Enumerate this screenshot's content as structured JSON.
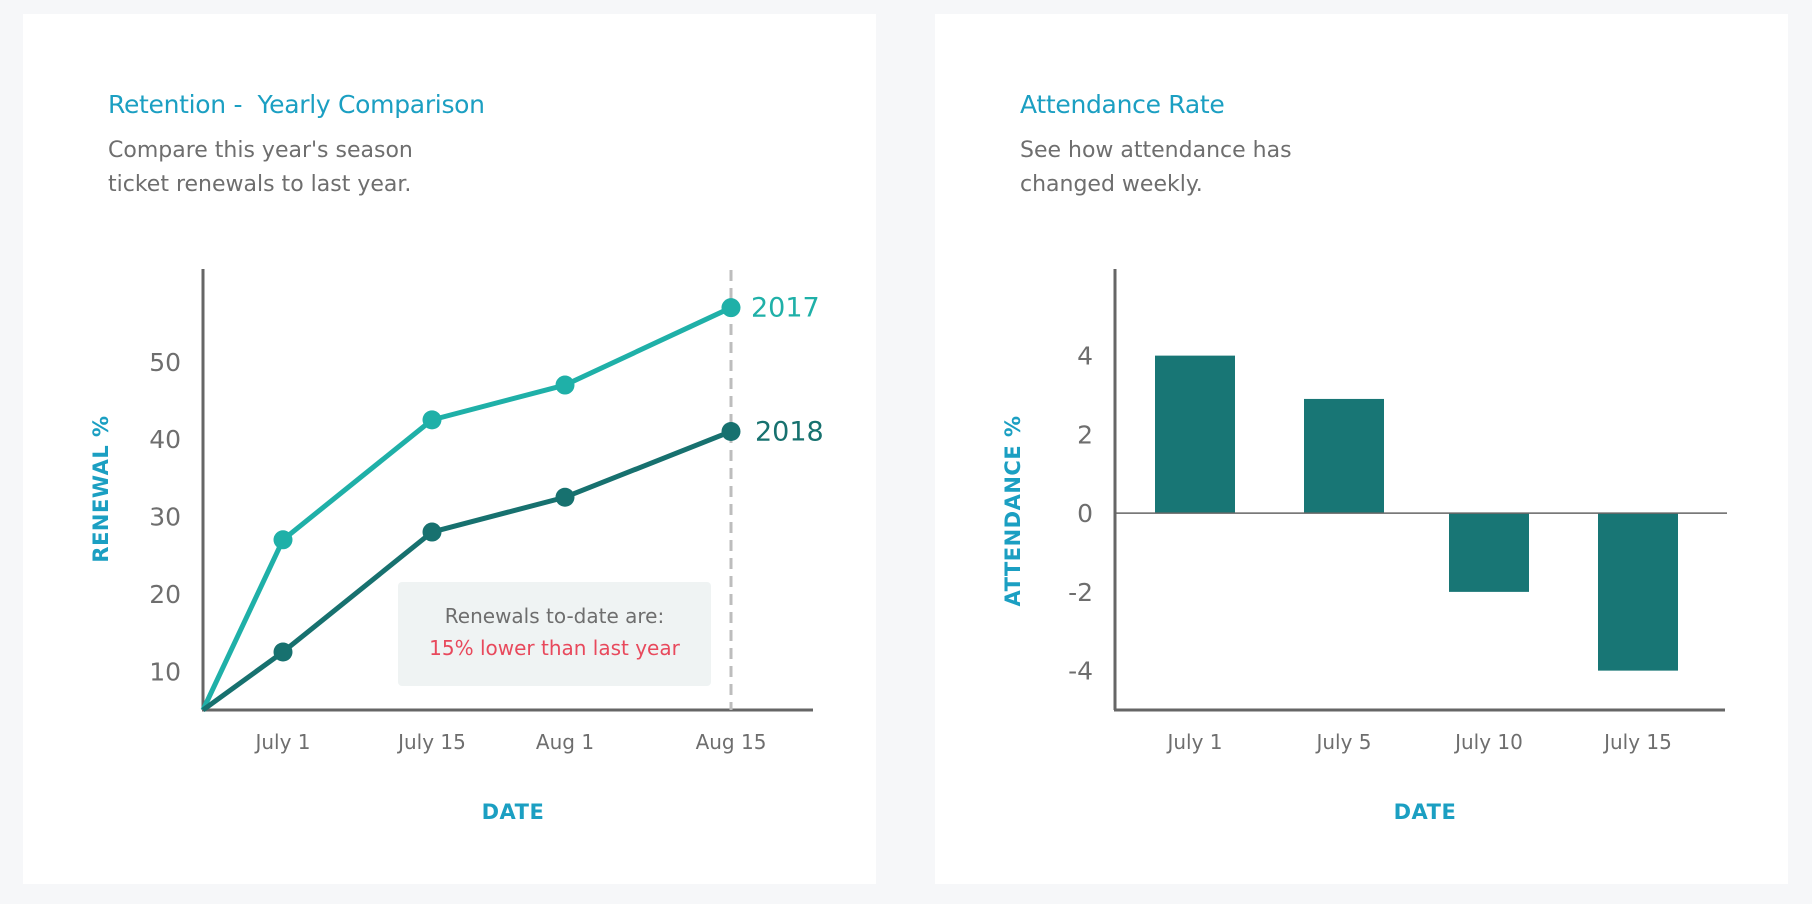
{
  "colors": {
    "accent_title": "#1b9fc2",
    "series_2017": "#1fb0a8",
    "series_2018": "#17716f",
    "bar": "#187675",
    "axis": "#666666",
    "text_muted": "#6e6e6e",
    "callout_highlight": "#e8495c",
    "callout_bg": "#eff3f3"
  },
  "retention": {
    "title": "Retention -  Yearly Comparison",
    "description": "Compare this year's season ticket renewals to last year.",
    "callout": {
      "line1": "Renewals to-date are:",
      "line2": "15% lower than last year"
    }
  },
  "attendance": {
    "title": "Attendance Rate",
    "description": "See how attendance has changed weekly."
  },
  "chart_data": [
    {
      "type": "line",
      "categories": [
        "July 1",
        "July 15",
        "Aug 1",
        "Aug 15"
      ],
      "series": [
        {
          "name": "2017",
          "start_value": 5,
          "values": [
            27,
            42.5,
            47,
            57
          ]
        },
        {
          "name": "2018",
          "start_value": 5,
          "values": [
            12.5,
            28,
            32.5,
            41
          ]
        }
      ],
      "xlabel": "DATE",
      "ylabel": "RENEWAL %",
      "yticks": [
        10,
        20,
        30,
        40,
        50
      ],
      "ylim": [
        5,
        62
      ],
      "marker_line_at": "Aug 15",
      "grid": false,
      "legend": "end-of-line labels"
    },
    {
      "type": "bar",
      "categories": [
        "July 1",
        "July 5",
        "July 10",
        "July 15"
      ],
      "values": [
        4,
        2.9,
        -2,
        -4
      ],
      "xlabel": "DATE",
      "ylabel": "ATTENDANCE %",
      "yticks": [
        4,
        2,
        0,
        -2,
        -4
      ],
      "ylim": [
        -5,
        6.2
      ],
      "grid": false
    }
  ]
}
